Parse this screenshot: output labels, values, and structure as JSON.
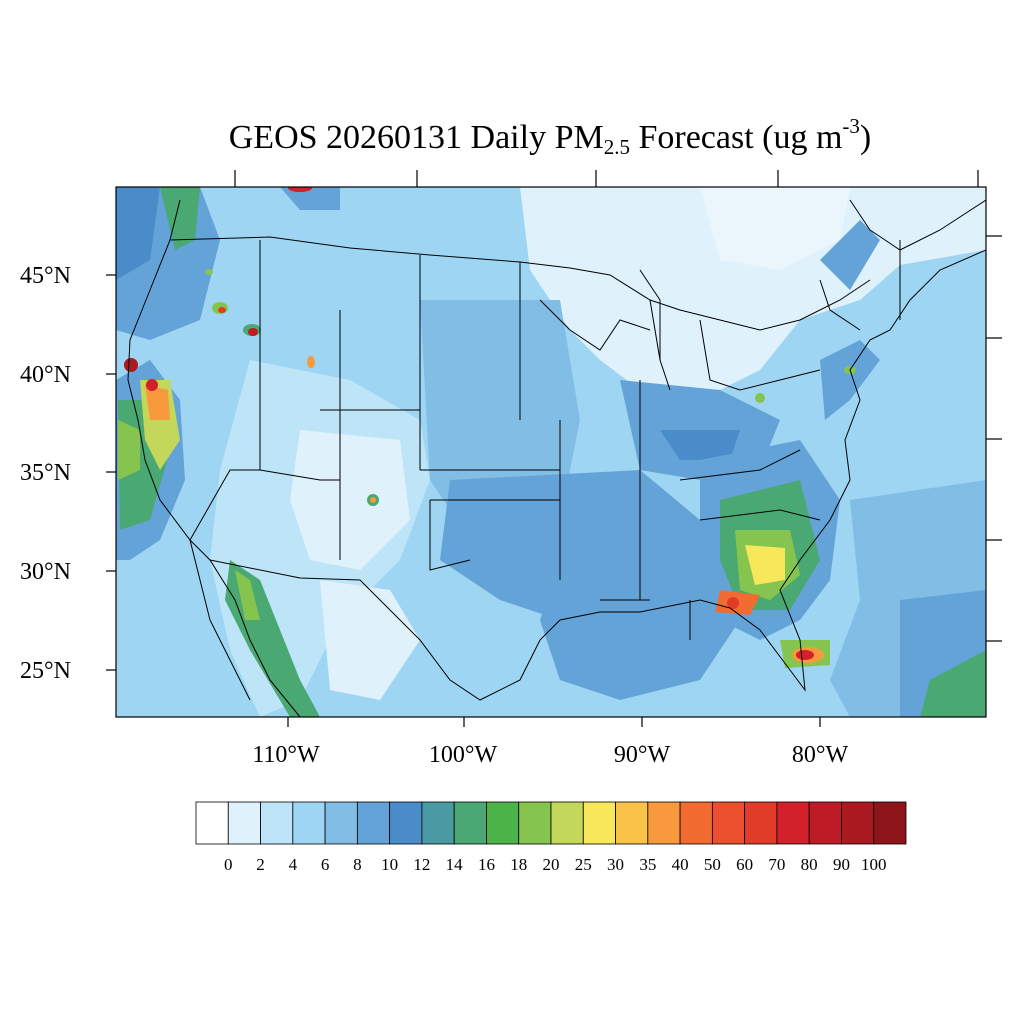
{
  "title": {
    "main": "GEOS 20260131 Daily PM",
    "subscript": "2.5",
    "suffix": " Forecast (ug m",
    "superscript": "-3",
    "close": ")"
  },
  "axes": {
    "lat_labels": [
      "45°N",
      "40°N",
      "35°N",
      "30°N",
      "25°N"
    ],
    "lon_labels": [
      "110°W",
      "100°W",
      "90°W",
      "80°W"
    ]
  },
  "colorbar": {
    "labels": [
      "0",
      "2",
      "4",
      "6",
      "8",
      "10",
      "12",
      "14",
      "16",
      "18",
      "20",
      "25",
      "30",
      "35",
      "40",
      "50",
      "60",
      "70",
      "80",
      "90",
      "100"
    ],
    "colors": [
      "#ffffff",
      "#dff1fb",
      "#bde5f7",
      "#9dd5f3",
      "#82bde6",
      "#63a3d8",
      "#4a8bc9",
      "#4a9aa3",
      "#4aa872",
      "#4bb449",
      "#86c450",
      "#c3d75a",
      "#f7e75a",
      "#fbc24a",
      "#f9993e",
      "#f26b30",
      "#e9502b",
      "#e13c29",
      "#d3212b",
      "#bd1b26",
      "#aa1820",
      "#8e1519"
    ]
  }
}
